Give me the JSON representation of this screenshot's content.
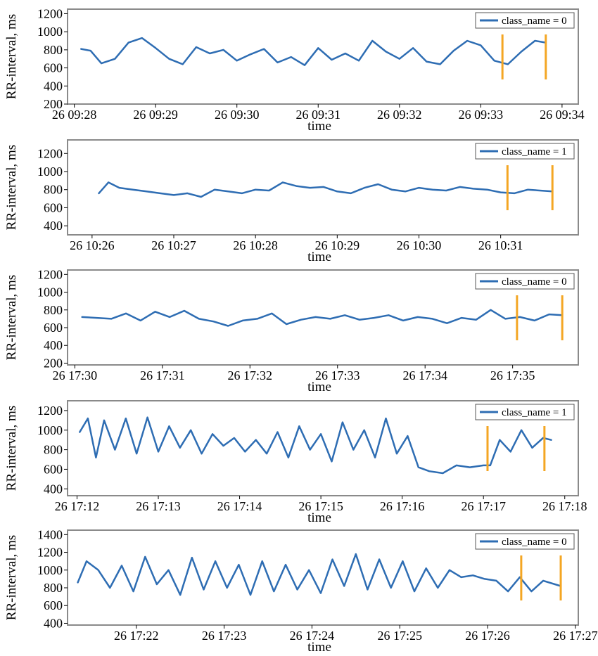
{
  "chart_data": [
    {
      "type": "line",
      "xlabel": "time",
      "ylabel": "RR-interval, ms",
      "ylim": [
        200,
        1250
      ],
      "yticks": [
        200,
        400,
        600,
        800,
        1000,
        1200
      ],
      "xlim": [
        "09:27:55",
        "09:34:12"
      ],
      "xticks": [
        "09:28",
        "09:29",
        "09:30",
        "09:31",
        "09:32",
        "09:33",
        "09:34"
      ],
      "xtick_labels": [
        "26 09:28",
        "26 09:29",
        "26 09:30",
        "26 09:31",
        "26 09:32",
        "26 09:33",
        "26 09:34"
      ],
      "legend": "class_name = 0",
      "legend_position": "top-right",
      "series_color": "#2e6db3",
      "marker_color": "#f4a623",
      "markers": [
        "09:33:16",
        "09:33:48"
      ],
      "grid": false,
      "series": [
        {
          "x": [
            "09:28:05",
            "09:28:12",
            "09:28:20",
            "09:28:30",
            "09:28:40",
            "09:28:50",
            "09:29:00",
            "09:29:10",
            "09:29:20",
            "09:29:30",
            "09:29:40",
            "09:29:50",
            "09:30:00",
            "09:30:10",
            "09:30:20",
            "09:30:30",
            "09:30:40",
            "09:30:50",
            "09:31:00",
            "09:31:10",
            "09:31:20",
            "09:31:30",
            "09:31:40",
            "09:31:50",
            "09:32:00",
            "09:32:10",
            "09:32:20",
            "09:32:30",
            "09:32:40",
            "09:32:50",
            "09:33:00",
            "09:33:10",
            "09:33:20",
            "09:33:30",
            "09:33:40",
            "09:33:48"
          ],
          "y": [
            810,
            790,
            650,
            700,
            880,
            930,
            820,
            700,
            640,
            830,
            760,
            800,
            680,
            750,
            810,
            660,
            720,
            630,
            820,
            690,
            760,
            680,
            900,
            780,
            700,
            820,
            670,
            640,
            790,
            900,
            850,
            680,
            640,
            780,
            900,
            880
          ]
        }
      ]
    },
    {
      "type": "line",
      "xlabel": "time",
      "ylabel": "RR-interval, ms",
      "ylim": [
        300,
        1350
      ],
      "yticks": [
        400,
        600,
        800,
        1000,
        1200
      ],
      "xlim": [
        "10:25:42",
        "10:31:57"
      ],
      "xticks": [
        "10:26",
        "10:27",
        "10:28",
        "10:29",
        "10:30",
        "10:31"
      ],
      "xtick_labels": [
        "26 10:26",
        "26 10:27",
        "26 10:28",
        "26 10:29",
        "26 10:30",
        "26 10:31"
      ],
      "legend": "class_name = 1",
      "legend_position": "top-right",
      "series_color": "#2e6db3",
      "marker_color": "#f4a623",
      "markers": [
        "10:31:05",
        "10:31:38"
      ],
      "grid": false,
      "series": [
        {
          "x": [
            "10:26:05",
            "10:26:12",
            "10:26:20",
            "10:26:30",
            "10:26:40",
            "10:26:50",
            "10:27:00",
            "10:27:10",
            "10:27:20",
            "10:27:30",
            "10:27:40",
            "10:27:50",
            "10:28:00",
            "10:28:10",
            "10:28:20",
            "10:28:30",
            "10:28:40",
            "10:28:50",
            "10:29:00",
            "10:29:10",
            "10:29:20",
            "10:29:30",
            "10:29:40",
            "10:29:50",
            "10:30:00",
            "10:30:10",
            "10:30:20",
            "10:30:30",
            "10:30:40",
            "10:30:50",
            "10:31:00",
            "10:31:10",
            "10:31:20",
            "10:31:38"
          ],
          "y": [
            760,
            880,
            820,
            800,
            780,
            760,
            740,
            760,
            720,
            800,
            780,
            760,
            800,
            790,
            880,
            840,
            820,
            830,
            780,
            760,
            820,
            860,
            800,
            780,
            820,
            800,
            790,
            830,
            810,
            800,
            770,
            760,
            800,
            780
          ]
        }
      ]
    },
    {
      "type": "line",
      "xlabel": "time",
      "ylabel": "RR-interval, ms",
      "ylim": [
        180,
        1250
      ],
      "yticks": [
        200,
        400,
        600,
        800,
        1000,
        1200
      ],
      "xlim": [
        "17:29:55",
        "17:35:45"
      ],
      "xticks": [
        "17:30",
        "17:31",
        "17:32",
        "17:33",
        "17:34",
        "17:35"
      ],
      "xtick_labels": [
        "26 17:30",
        "26 17:31",
        "26 17:32",
        "26 17:33",
        "26 17:34",
        "26 17:35"
      ],
      "legend": "class_name = 0",
      "legend_position": "top-right",
      "series_color": "#2e6db3",
      "marker_color": "#f4a623",
      "markers": [
        "17:35:03",
        "17:35:34"
      ],
      "grid": false,
      "series": [
        {
          "x": [
            "17:30:05",
            "17:30:15",
            "17:30:25",
            "17:30:35",
            "17:30:45",
            "17:30:55",
            "17:31:05",
            "17:31:15",
            "17:31:25",
            "17:31:35",
            "17:31:45",
            "17:31:55",
            "17:32:05",
            "17:32:15",
            "17:32:25",
            "17:32:35",
            "17:32:45",
            "17:32:55",
            "17:33:05",
            "17:33:15",
            "17:33:25",
            "17:33:35",
            "17:33:45",
            "17:33:55",
            "17:34:05",
            "17:34:15",
            "17:34:25",
            "17:34:35",
            "17:34:45",
            "17:34:55",
            "17:35:05",
            "17:35:15",
            "17:35:25",
            "17:35:34"
          ],
          "y": [
            720,
            710,
            700,
            760,
            680,
            780,
            720,
            790,
            700,
            670,
            620,
            680,
            700,
            760,
            640,
            690,
            720,
            700,
            740,
            690,
            710,
            740,
            680,
            720,
            700,
            650,
            710,
            690,
            800,
            700,
            720,
            680,
            750,
            740
          ]
        }
      ]
    },
    {
      "type": "line",
      "xlabel": "time",
      "ylabel": "RR-interval, ms",
      "ylim": [
        330,
        1300
      ],
      "yticks": [
        400,
        600,
        800,
        1000,
        1200
      ],
      "xlim": [
        "17:11:53",
        "17:18:10"
      ],
      "xticks": [
        "17:12",
        "17:13",
        "17:14",
        "17:15",
        "17:16",
        "17:17",
        "17:18"
      ],
      "xtick_labels": [
        "26 17:12",
        "26 17:13",
        "26 17:14",
        "26 17:15",
        "26 17:16",
        "26 17:17",
        "26 17:18"
      ],
      "legend": "class_name = 1",
      "legend_position": "top-right",
      "series_color": "#2e6db3",
      "marker_color": "#f4a623",
      "markers": [
        "17:17:03",
        "17:17:45"
      ],
      "grid": false,
      "series": [
        {
          "x": [
            "17:12:02",
            "17:12:08",
            "17:12:14",
            "17:12:20",
            "17:12:28",
            "17:12:36",
            "17:12:44",
            "17:12:52",
            "17:13:00",
            "17:13:08",
            "17:13:16",
            "17:13:24",
            "17:13:32",
            "17:13:40",
            "17:13:48",
            "17:13:56",
            "17:14:04",
            "17:14:12",
            "17:14:20",
            "17:14:28",
            "17:14:36",
            "17:14:44",
            "17:14:52",
            "17:15:00",
            "17:15:08",
            "17:15:16",
            "17:15:24",
            "17:15:32",
            "17:15:40",
            "17:15:48",
            "17:15:56",
            "17:16:04",
            "17:16:12",
            "17:16:20",
            "17:16:30",
            "17:16:40",
            "17:16:50",
            "17:17:00",
            "17:17:05",
            "17:17:12",
            "17:17:20",
            "17:17:28",
            "17:17:36",
            "17:17:44",
            "17:17:50"
          ],
          "y": [
            980,
            1120,
            720,
            1100,
            800,
            1120,
            760,
            1130,
            780,
            1040,
            820,
            1000,
            760,
            960,
            840,
            920,
            780,
            900,
            760,
            980,
            720,
            1040,
            800,
            960,
            680,
            1080,
            800,
            1000,
            720,
            1120,
            760,
            940,
            620,
            580,
            560,
            640,
            620,
            640,
            640,
            900,
            780,
            1000,
            820,
            920,
            900
          ]
        }
      ]
    },
    {
      "type": "line",
      "xlabel": "time",
      "ylabel": "RR-interval, ms",
      "ylim": [
        380,
        1450
      ],
      "yticks": [
        400,
        600,
        800,
        1000,
        1200,
        1400
      ],
      "xlim": [
        "17:21:13",
        "17:27:02"
      ],
      "xticks": [
        "17:22",
        "17:23",
        "17:24",
        "17:25",
        "17:26",
        "17:27"
      ],
      "xtick_labels": [
        "26 17:22",
        "26 17:23",
        "26 17:24",
        "26 17:25",
        "26 17:26",
        "26 17:27"
      ],
      "legend": "class_name = 0",
      "legend_position": "top-right",
      "series_color": "#2e6db3",
      "marker_color": "#f4a623",
      "markers": [
        "17:26:23",
        "17:26:50"
      ],
      "grid": false,
      "series": [
        {
          "x": [
            "17:21:20",
            "17:21:26",
            "17:21:34",
            "17:21:42",
            "17:21:50",
            "17:21:58",
            "17:22:06",
            "17:22:14",
            "17:22:22",
            "17:22:30",
            "17:22:38",
            "17:22:46",
            "17:22:54",
            "17:23:02",
            "17:23:10",
            "17:23:18",
            "17:23:26",
            "17:23:34",
            "17:23:42",
            "17:23:50",
            "17:23:58",
            "17:24:06",
            "17:24:14",
            "17:24:22",
            "17:24:30",
            "17:24:38",
            "17:24:46",
            "17:24:54",
            "17:25:02",
            "17:25:10",
            "17:25:18",
            "17:25:26",
            "17:25:34",
            "17:25:42",
            "17:25:50",
            "17:25:58",
            "17:26:06",
            "17:26:14",
            "17:26:22",
            "17:26:30",
            "17:26:38",
            "17:26:50"
          ],
          "y": [
            860,
            1100,
            1000,
            800,
            1050,
            760,
            1150,
            840,
            1000,
            720,
            1140,
            780,
            1100,
            800,
            1060,
            720,
            1100,
            760,
            1060,
            780,
            1000,
            740,
            1120,
            820,
            1180,
            780,
            1120,
            800,
            1100,
            760,
            1020,
            800,
            1000,
            920,
            940,
            900,
            880,
            760,
            920,
            760,
            880,
            820
          ]
        }
      ]
    }
  ]
}
